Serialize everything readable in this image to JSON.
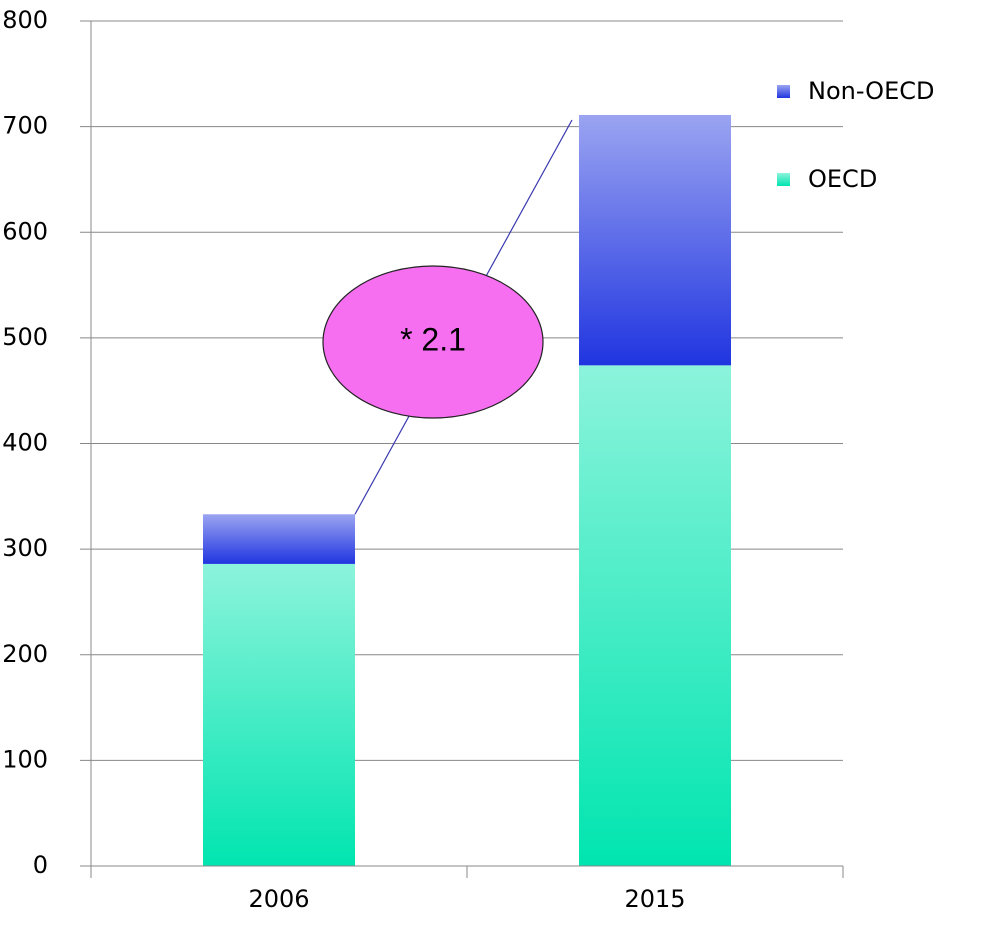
{
  "chart_data": {
    "type": "bar",
    "stacked": true,
    "categories": [
      "2006",
      "2015"
    ],
    "series": [
      {
        "name": "OECD",
        "color": "#00e5b0",
        "values": [
          286,
          474
        ]
      },
      {
        "name": "Non-OECD",
        "color": "#2035e0",
        "values": [
          47,
          237
        ]
      }
    ],
    "ylim": [
      0,
      800
    ],
    "yticks": [
      0,
      100,
      200,
      300,
      400,
      500,
      600,
      700,
      800
    ],
    "grid": true,
    "legend": "right",
    "annotation": "* 2.1"
  }
}
